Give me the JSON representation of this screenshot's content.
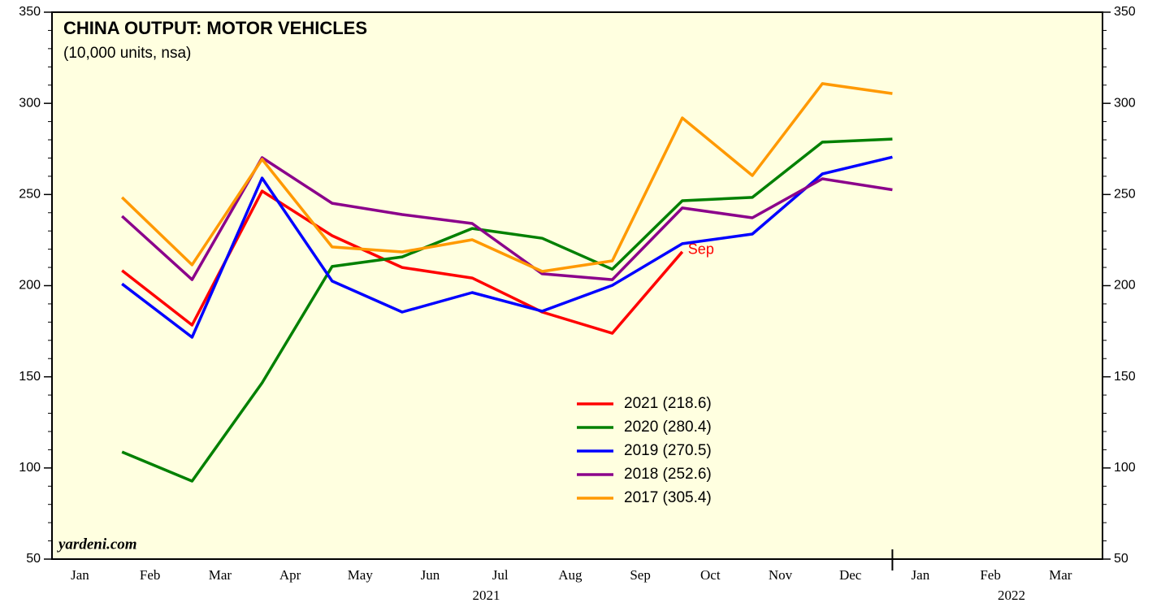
{
  "chart_data": {
    "type": "line",
    "title": "CHINA OUTPUT: MOTOR VEHICLES",
    "subtitle": "(10,000 units, nsa)",
    "source": "yardeni.com",
    "annotation": {
      "text": "Sep",
      "color": "#ff0000"
    },
    "categories": [
      "Jan",
      "Feb",
      "Mar",
      "Apr",
      "May",
      "Jun",
      "Jul",
      "Aug",
      "Sep",
      "Oct",
      "Nov",
      "Dec",
      "Jan",
      "Feb",
      "Mar"
    ],
    "x_groups": [
      {
        "label": "2021",
        "span": 12
      },
      {
        "label": "2022",
        "span": 3
      }
    ],
    "ylim": [
      50,
      350
    ],
    "yticks": [
      50,
      100,
      150,
      200,
      250,
      300,
      350
    ],
    "yminorticks": [
      60,
      70,
      80,
      90,
      110,
      120,
      130,
      140,
      160,
      170,
      180,
      190,
      210,
      220,
      230,
      240,
      260,
      270,
      280,
      290,
      310,
      320,
      330,
      340
    ],
    "background": "#ffffe0",
    "series": [
      {
        "name": "2021 (218.6)",
        "color": "#ff0000",
        "values": [
          208.3,
          178.4,
          251.9,
          227.4,
          210,
          204.2,
          185.5,
          173.9,
          218.6,
          null,
          null,
          null,
          null,
          null,
          null
        ]
      },
      {
        "name": "2020 (280.4)",
        "color": "#008000",
        "values": [
          108.8,
          92.8,
          146.7,
          210.5,
          215.8,
          231.4,
          226,
          209,
          246.6,
          248.4,
          278.7,
          280.4,
          null,
          null,
          null
        ]
      },
      {
        "name": "2019 (270.5)",
        "color": "#0000ff",
        "values": [
          201,
          171.7,
          259,
          202.5,
          185.5,
          196.2,
          186,
          200.2,
          223,
          228.3,
          261.3,
          270.5,
          null,
          null,
          null
        ]
      },
      {
        "name": "2018 (252.6)",
        "color": "#8b008b",
        "values": [
          238.1,
          203.3,
          270.2,
          245.2,
          239,
          234.1,
          206.5,
          203.3,
          242.6,
          237.2,
          258.6,
          252.6,
          null,
          null,
          null
        ]
      },
      {
        "name": "2017 (305.4)",
        "color": "#ff9900",
        "values": [
          248.4,
          211.4,
          269.3,
          221.2,
          218.5,
          225.2,
          207.8,
          213.6,
          292,
          260.4,
          310.8,
          305.4,
          null,
          null,
          null
        ]
      }
    ]
  }
}
